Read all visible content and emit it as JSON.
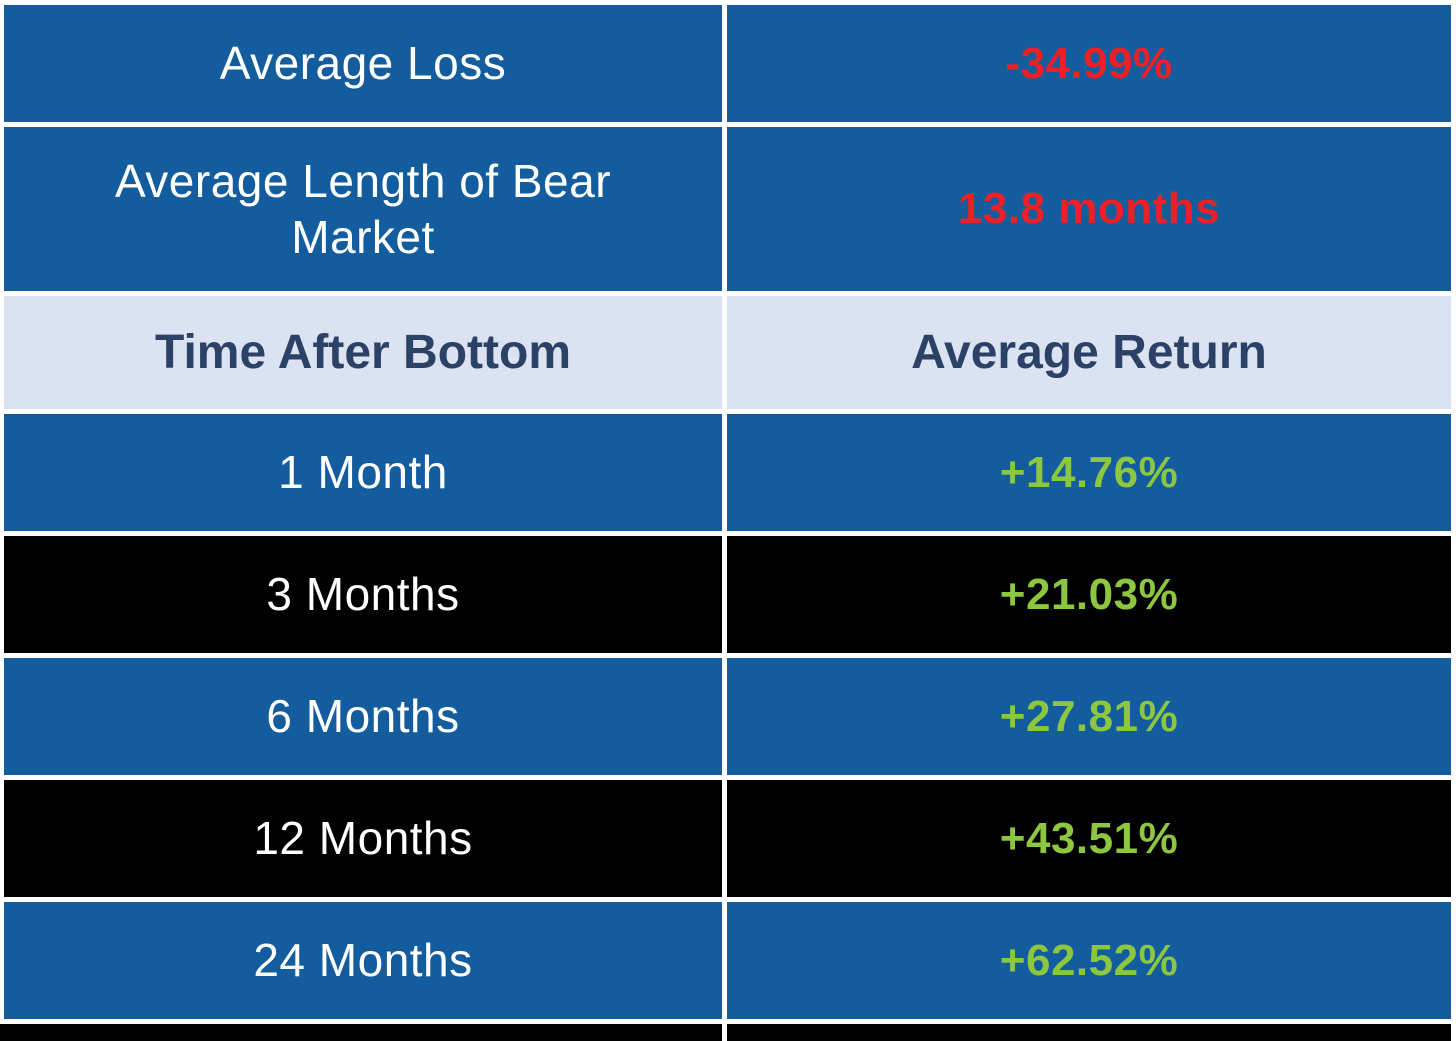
{
  "colors": {
    "blue": "#135C9E",
    "black": "#000000",
    "lavender": "#DBE2F1",
    "navy": "#2C4166",
    "red": "#EC2027",
    "green": "#8DC63F",
    "white": "#FFFFFF"
  },
  "summary_rows": [
    {
      "label": "Average Loss",
      "value": "-34.99%"
    },
    {
      "label": "Average Length of Bear Market",
      "value": "13.8 months"
    }
  ],
  "header_row": {
    "left": "Time After Bottom",
    "right": "Average Return"
  },
  "data_rows": [
    {
      "label": "1 Month",
      "value": "+14.76%",
      "theme": "blue"
    },
    {
      "label": "3 Months",
      "value": "+21.03%",
      "theme": "black"
    },
    {
      "label": "6 Months",
      "value": "+27.81%",
      "theme": "blue"
    },
    {
      "label": "12 Months",
      "value": "+43.51%",
      "theme": "black"
    },
    {
      "label": "24 Months",
      "value": "+62.52%",
      "theme": "blue"
    }
  ],
  "chart_data": {
    "type": "table",
    "title": "",
    "columns": [
      "Time After Bottom",
      "Average Return"
    ],
    "rows": [
      [
        "Average Loss",
        "-34.99%"
      ],
      [
        "Average Length of Bear Market",
        "13.8 months"
      ],
      [
        "1 Month",
        "+14.76%"
      ],
      [
        "3 Months",
        "+21.03%"
      ],
      [
        "6 Months",
        "+27.81%"
      ],
      [
        "12 Months",
        "+43.51%"
      ],
      [
        "24 Months",
        "+62.52%"
      ]
    ],
    "notes": {
      "average_loss_pct": -34.99,
      "average_bear_market_length_months": 13.8,
      "returns_after_bottom_pct": {
        "1_month": 14.76,
        "3_months": 21.03,
        "6_months": 27.81,
        "12_months": 43.51,
        "24_months": 62.52
      }
    }
  }
}
